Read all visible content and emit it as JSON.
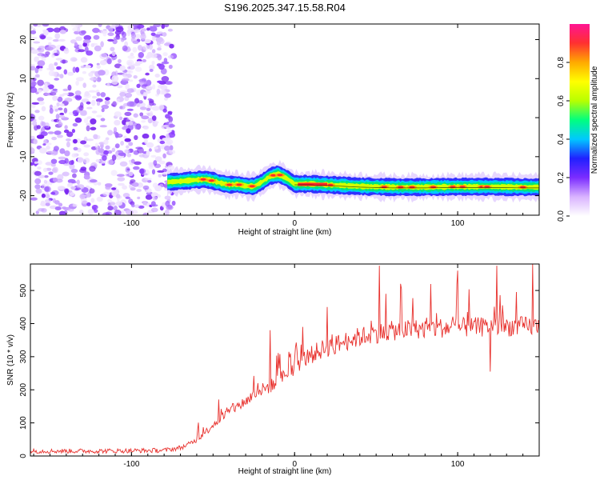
{
  "figure": {
    "title": "S196.2025.347.15.58.R04"
  },
  "chart_data": [
    {
      "type": "heatmap",
      "panel": "top",
      "xlabel": "Height of straight line (km)",
      "ylabel": "Frequency (Hz)",
      "xlim": [
        -162,
        150
      ],
      "ylim": [
        -25,
        24
      ],
      "xticks": [
        -100,
        0,
        100
      ],
      "xtick_labels": [
        "-100",
        "0",
        "100"
      ],
      "yticks": [
        -20,
        -10,
        0,
        10,
        20
      ],
      "ytick_labels": [
        "-20",
        "-10",
        "0",
        "10",
        "20"
      ],
      "noise_region_x": [
        -162,
        -78
      ],
      "ridge": {
        "x": [
          -78,
          -70,
          -62,
          -55,
          -50,
          -45,
          -40,
          -35,
          -30,
          -25,
          -20,
          -15,
          -10,
          -5,
          0,
          10,
          20,
          30,
          40,
          60,
          80,
          100,
          120,
          140,
          150
        ],
        "y": [
          -16.5,
          -16.3,
          -16.0,
          -15.8,
          -16.2,
          -16.8,
          -17.2,
          -17.1,
          -17.5,
          -17.6,
          -16.5,
          -15.0,
          -14.5,
          -15.5,
          -17.0,
          -17.0,
          -17.2,
          -17.4,
          -17.6,
          -17.8,
          -17.8,
          -17.7,
          -17.7,
          -17.8,
          -17.8
        ],
        "peaks_x": [
          -56,
          -51,
          -40,
          -34,
          -26,
          -13,
          -9,
          8,
          16,
          22,
          55,
          65,
          72,
          85,
          97,
          103,
          115,
          118,
          140
        ]
      },
      "colorbar": {
        "label": "Normalized spectral amplitude",
        "range": [
          0,
          1
        ],
        "ticks": [
          0.0,
          0.2,
          0.4,
          0.6,
          0.8
        ],
        "tick_labels": [
          "0.0",
          "0.2",
          "0.4",
          "0.6",
          "0.8"
        ],
        "colors": [
          "#ffffff",
          "#d9b3ff",
          "#7b2cff",
          "#2020ff",
          "#00c8ff",
          "#00ff7f",
          "#b8ff00",
          "#ffff00",
          "#ffaa00",
          "#ff3030",
          "#ff1493"
        ]
      }
    },
    {
      "type": "line",
      "panel": "bottom",
      "xlabel": "Height of straight line (km)",
      "ylabel": "SNR (10 * v/v)",
      "xlim": [
        -162,
        150
      ],
      "ylim": [
        0,
        580
      ],
      "xticks": [
        -100,
        0,
        100
      ],
      "xtick_labels": [
        "-100",
        "0",
        "100"
      ],
      "yticks": [
        0,
        100,
        200,
        300,
        400,
        500
      ],
      "ytick_labels": [
        "0",
        "100",
        "200",
        "300",
        "400",
        "500"
      ],
      "line_color": "#e8322e",
      "series": [
        {
          "name": "SNR",
          "x": [
            -162,
            -140,
            -120,
            -100,
            -80,
            -70,
            -65,
            -60,
            -55,
            -50,
            -45,
            -40,
            -35,
            -30,
            -25,
            -20,
            -15,
            -10,
            -5,
            0,
            5,
            10,
            15,
            20,
            25,
            30,
            35,
            40,
            45,
            50,
            55,
            60,
            70,
            80,
            90,
            100,
            110,
            120,
            130,
            140,
            150
          ],
          "baseline": [
            15,
            15,
            15,
            16,
            17,
            25,
            35,
            50,
            70,
            95,
            115,
            135,
            150,
            165,
            185,
            200,
            210,
            225,
            250,
            270,
            290,
            305,
            318,
            328,
            335,
            345,
            352,
            360,
            365,
            370,
            375,
            378,
            382,
            385,
            387,
            388,
            389,
            390,
            391,
            392,
            392
          ],
          "notable_spikes": [
            {
              "x": -15,
              "y": 380
            },
            {
              "x": 5,
              "y": 390
            },
            {
              "x": 20,
              "y": 450
            },
            {
              "x": 52,
              "y": 575
            },
            {
              "x": 65,
              "y": 520
            },
            {
              "x": 100,
              "y": 560
            },
            {
              "x": 124,
              "y": 575
            },
            {
              "x": 146,
              "y": 580
            },
            {
              "x": 120,
              "y": 255
            }
          ]
        }
      ]
    }
  ]
}
